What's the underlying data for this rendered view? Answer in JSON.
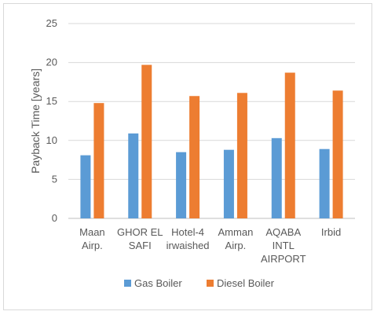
{
  "chart_data": {
    "type": "bar",
    "title": "",
    "xlabel": "",
    "ylabel": "Payback Time [years]",
    "ylim": [
      0,
      25
    ],
    "yticks": [
      0,
      5,
      10,
      15,
      20,
      25
    ],
    "grid": true,
    "legend_position": "bottom",
    "categories": [
      [
        "Maan",
        "Airp."
      ],
      [
        "GHOR EL",
        "SAFI"
      ],
      [
        "Hotel-4",
        "irwaished"
      ],
      [
        "Amman",
        "Airp."
      ],
      [
        "AQABA",
        "INTL",
        "AIRPORT"
      ],
      [
        "Irbid"
      ]
    ],
    "series": [
      {
        "name": "Gas Boiler",
        "color": "#5b9bd5",
        "values": [
          8.1,
          10.9,
          8.5,
          8.8,
          10.3,
          8.9
        ]
      },
      {
        "name": "Diesel Boiler",
        "color": "#ed7d31",
        "values": [
          14.8,
          19.7,
          15.7,
          16.1,
          18.7,
          16.4
        ]
      }
    ]
  }
}
